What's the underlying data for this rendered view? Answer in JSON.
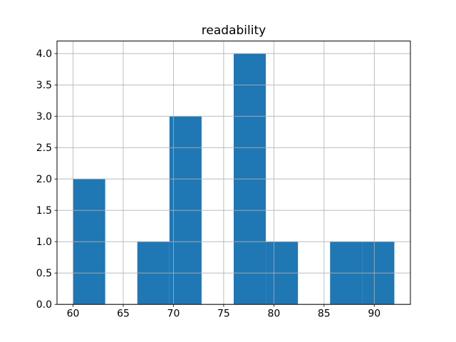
{
  "figure": {
    "background": "#ffffff"
  },
  "chart_data": {
    "type": "bar",
    "subtype": "histogram",
    "title": "readability",
    "xlabel": "",
    "ylabel": "",
    "bin_edges": [
      60.0,
      63.2,
      66.4,
      69.6,
      72.8,
      76.0,
      79.2,
      82.4,
      85.6,
      88.8,
      92.0
    ],
    "counts": [
      2,
      0,
      1,
      3,
      0,
      4,
      1,
      0,
      1,
      1
    ],
    "x_ticks": [
      60,
      65,
      70,
      75,
      80,
      85,
      90
    ],
    "x_tick_labels": [
      "60",
      "65",
      "70",
      "75",
      "80",
      "85",
      "90"
    ],
    "y_ticks": [
      0.0,
      0.5,
      1.0,
      1.5,
      2.0,
      2.5,
      3.0,
      3.5,
      4.0
    ],
    "y_tick_labels": [
      "0.0",
      "0.5",
      "1.0",
      "1.5",
      "2.0",
      "2.5",
      "3.0",
      "3.5",
      "4.0"
    ],
    "xlim": [
      58.4,
      93.6
    ],
    "ylim": [
      0.0,
      4.2
    ],
    "grid": true,
    "grid_over_bars": true,
    "legend": false,
    "bar_color": "#1f77b4",
    "grid_color": "#b0b0b0",
    "spine_color": "#000000",
    "tick_color": "#000000"
  }
}
